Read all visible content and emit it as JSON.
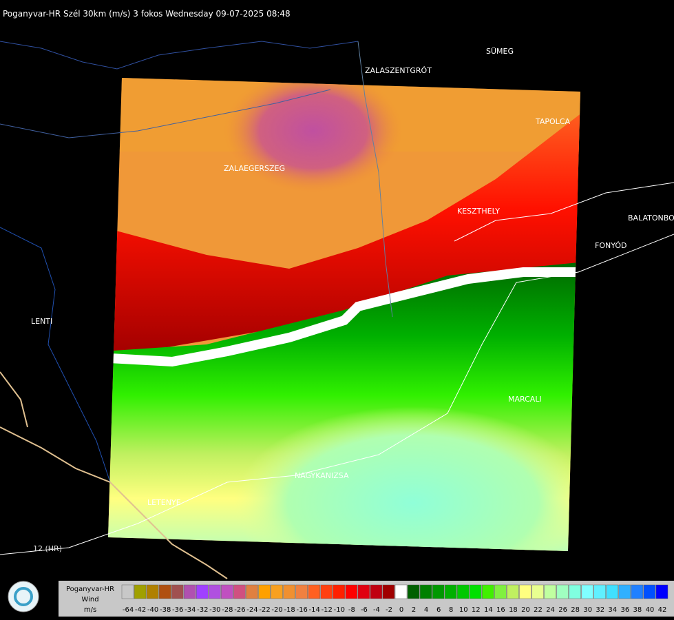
{
  "title": "Poganyvar-HR Szél 30km (m/s) 3 fokos Wednesday 09-07-2025 08:48",
  "places": [
    "SÜMEG",
    "ZALASZENTGRÓT",
    "TAPOLCA",
    "ZALAEGERSZEG",
    "KESZTHELY",
    "BALATONBO",
    "FONYÓD",
    "LENTI",
    "MARCALI",
    "NAGYKANIZSA",
    "LETENYE",
    "12 (HR)"
  ],
  "legend": {
    "title": [
      "Poganyvar-HR",
      "Wind",
      "m/s"
    ],
    "labels": [
      -64,
      -42,
      -40,
      -38,
      -36,
      -34,
      -32,
      -30,
      -28,
      -26,
      -24,
      -22,
      -20,
      -18,
      -16,
      -14,
      -12,
      -10,
      -8,
      -6,
      -4,
      -2,
      0,
      2,
      4,
      6,
      8,
      10,
      12,
      14,
      16,
      18,
      20,
      22,
      24,
      26,
      28,
      30,
      32,
      34,
      36,
      38,
      40,
      42
    ],
    "colors": [
      "#c8c8c8",
      "#a0a000",
      "#b08000",
      "#b05010",
      "#a05050",
      "#b050b0",
      "#a040ff",
      "#b050e0",
      "#c050c0",
      "#d05080",
      "#e08040",
      "#ffa000",
      "#f8a020",
      "#f09030",
      "#f08040",
      "#ff6020",
      "#ff4010",
      "#ff2000",
      "#ff0000",
      "#e00010",
      "#c00010",
      "#a00000",
      "#ffffff",
      "#006000",
      "#008000",
      "#009800",
      "#00b000",
      "#00c800",
      "#00e000",
      "#40f000",
      "#80f040",
      "#c0f060",
      "#ffff80",
      "#e8ff90",
      "#c0ffa0",
      "#a0ffc0",
      "#80ffe0",
      "#80ffff",
      "#60f0ff",
      "#40e0ff",
      "#30b0ff",
      "#2080ff",
      "#0050ff",
      "#0000ff"
    ]
  }
}
